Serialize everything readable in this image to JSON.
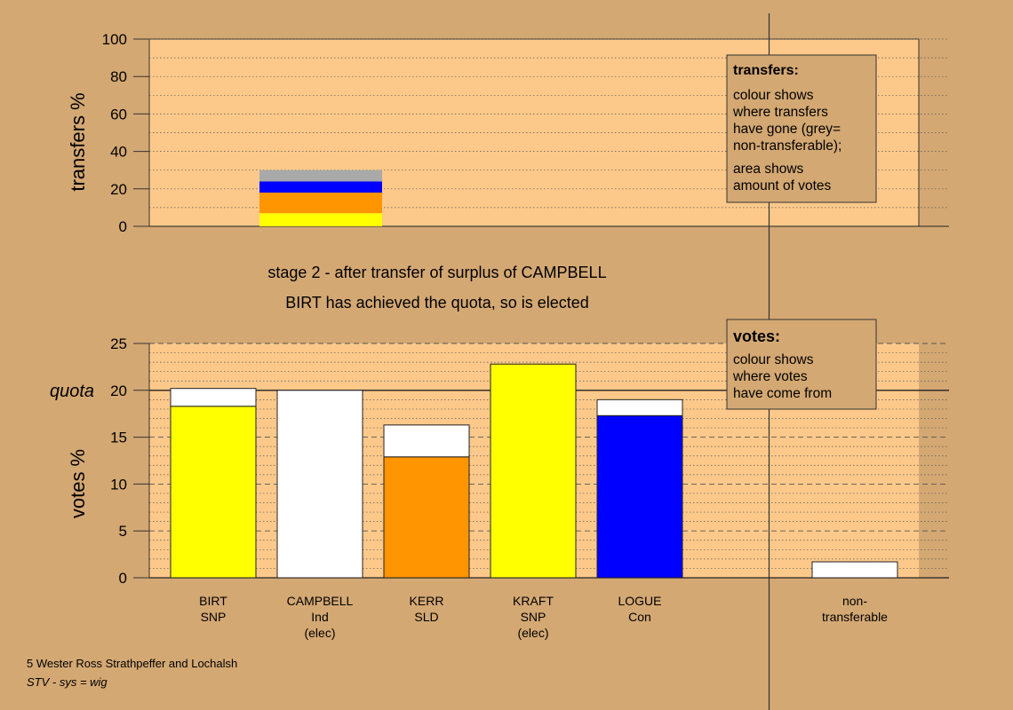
{
  "colors": {
    "background": "#d4a873",
    "plot_area": "#fdc98a",
    "SNP": "#ffff00",
    "SLD": "#ff9500",
    "Con": "#0000ff",
    "non_transferable": "#a9a9a9",
    "white": "#ffffff"
  },
  "header": {
    "stage_line": "stage 2 - after transfer of surplus of CAMPBELL",
    "status_line": "BIRT has achieved the quota, so is elected"
  },
  "legends": {
    "transfers": {
      "title": "transfers:",
      "line1": "colour shows",
      "line2": "where transfers",
      "line3": "have gone (grey=",
      "line4": "non-transferable);",
      "line5": "area shows",
      "line6": "amount of votes"
    },
    "votes": {
      "title": "votes:",
      "line1": "colour shows",
      "line2": "where votes",
      "line3": "have come from"
    }
  },
  "footer": {
    "ward": "5 Wester Ross Strathpeffer and Lochalsh",
    "system": "STV - sys = wig"
  },
  "chart_data": [
    {
      "type": "bar",
      "name": "transfers",
      "ylabel": "transfers %",
      "ylim": [
        0,
        100
      ],
      "yticks": [
        "0",
        "20",
        "40",
        "60",
        "80",
        "100"
      ],
      "stacked": true,
      "segments": [
        {
          "to": "SNP",
          "color": "#ffff00",
          "value": 7
        },
        {
          "to": "SLD",
          "color": "#ff9500",
          "value": 11
        },
        {
          "to": "Con",
          "color": "#0000ff",
          "value": 6
        },
        {
          "to": "non-transferable",
          "color": "#a9a9a9",
          "value": 6
        }
      ],
      "total": 30
    },
    {
      "type": "bar",
      "name": "votes",
      "ylabel": "votes %",
      "ylim": [
        0,
        25
      ],
      "yticks": [
        "0",
        "5",
        "10",
        "15",
        "20",
        "25"
      ],
      "quota": 20,
      "quota_label": "quota",
      "categories": [
        {
          "lines": [
            "BIRT",
            "SNP"
          ],
          "base": 18.3,
          "transfer": 1.9,
          "color": "#ffff00"
        },
        {
          "lines": [
            "CAMPBELL",
            "Ind",
            "(elec)"
          ],
          "base": 0,
          "transfer": 20.0,
          "color": "#ffffff"
        },
        {
          "lines": [
            "KERR",
            "SLD"
          ],
          "base": 12.9,
          "transfer": 3.4,
          "color": "#ff9500"
        },
        {
          "lines": [
            "KRAFT",
            "SNP",
            "(elec)"
          ],
          "base": 22.8,
          "transfer": 0,
          "color": "#ffff00"
        },
        {
          "lines": [
            "LOGUE",
            "Con"
          ],
          "base": 17.3,
          "transfer": 1.7,
          "color": "#0000ff"
        }
      ],
      "non_transferable": {
        "lines": [
          "non-",
          "transferable"
        ],
        "value": 1.7
      }
    }
  ]
}
